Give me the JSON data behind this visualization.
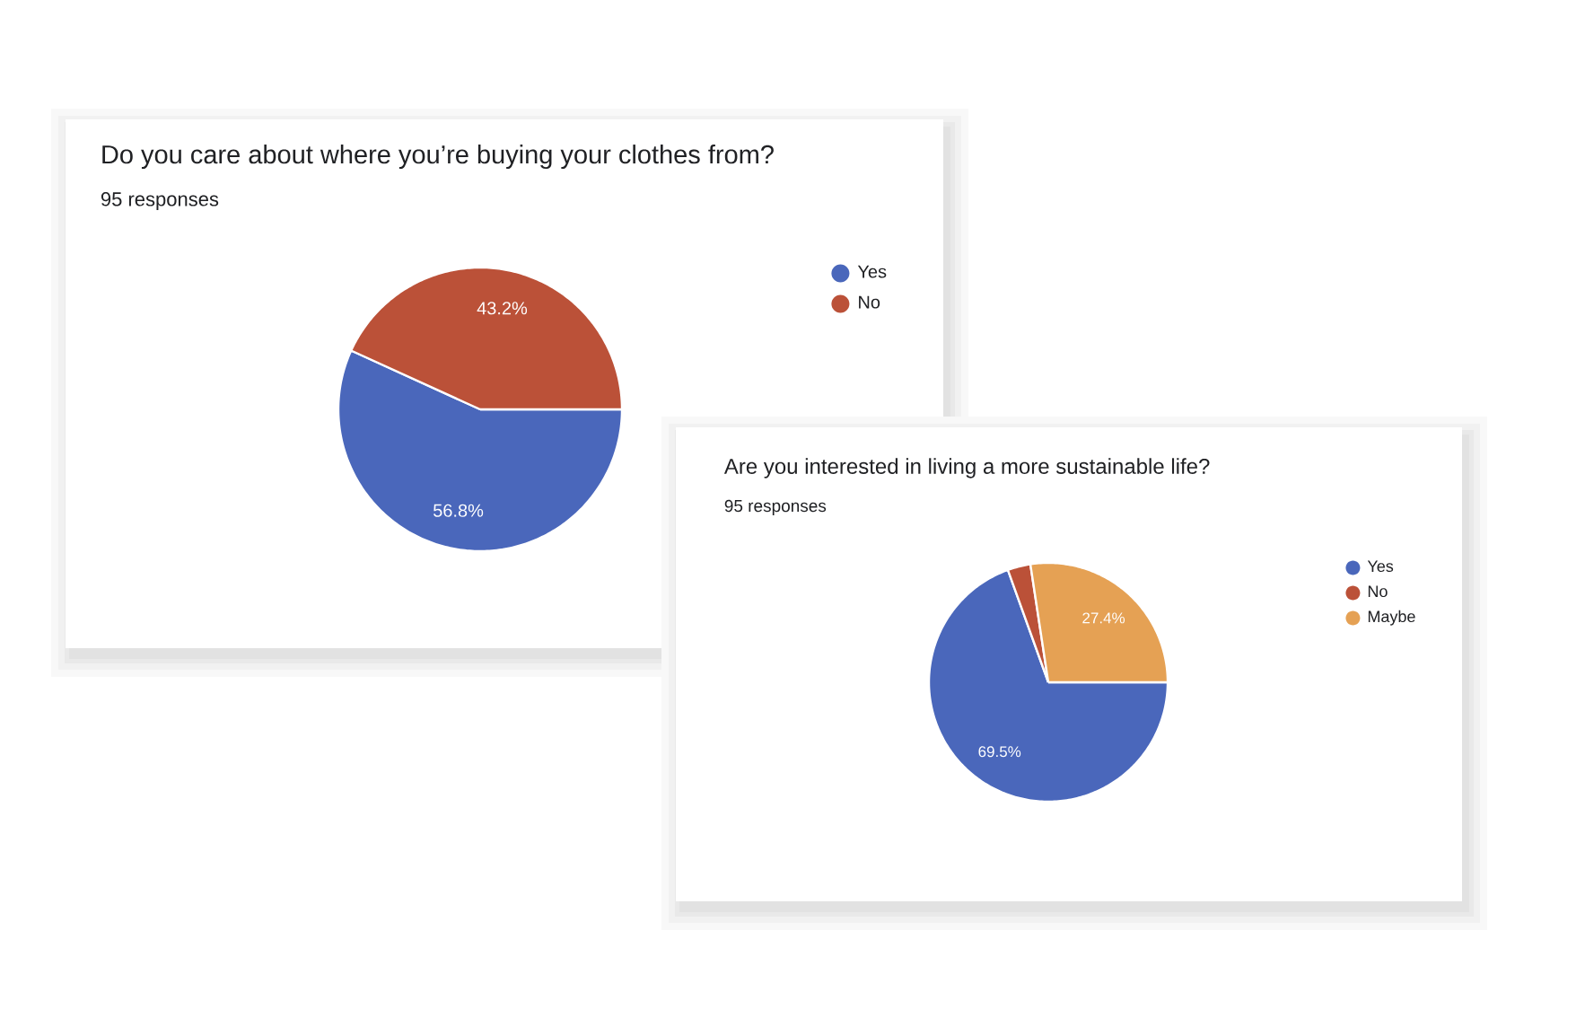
{
  "chart_data": [
    {
      "type": "pie",
      "title": "Do you care about where you’re buying your clothes from?",
      "subtitle": "95 responses",
      "categories": [
        "Yes",
        "No"
      ],
      "values": [
        56.8,
        43.2
      ],
      "colors": [
        "#4a67bb",
        "#bb5138"
      ],
      "value_labels": [
        "56.8%",
        "43.2%"
      ],
      "legend": "top right"
    },
    {
      "type": "pie",
      "title": "Are you interested in living a more sustainable life?",
      "subtitle": "95 responses",
      "categories": [
        "Yes",
        "No",
        "Maybe"
      ],
      "values": [
        69.5,
        3.1,
        27.4
      ],
      "colors": [
        "#4a67bb",
        "#bb5138",
        "#e5a154"
      ],
      "value_labels": [
        "69.5%",
        null,
        "27.4%"
      ],
      "legend": "top right"
    }
  ]
}
